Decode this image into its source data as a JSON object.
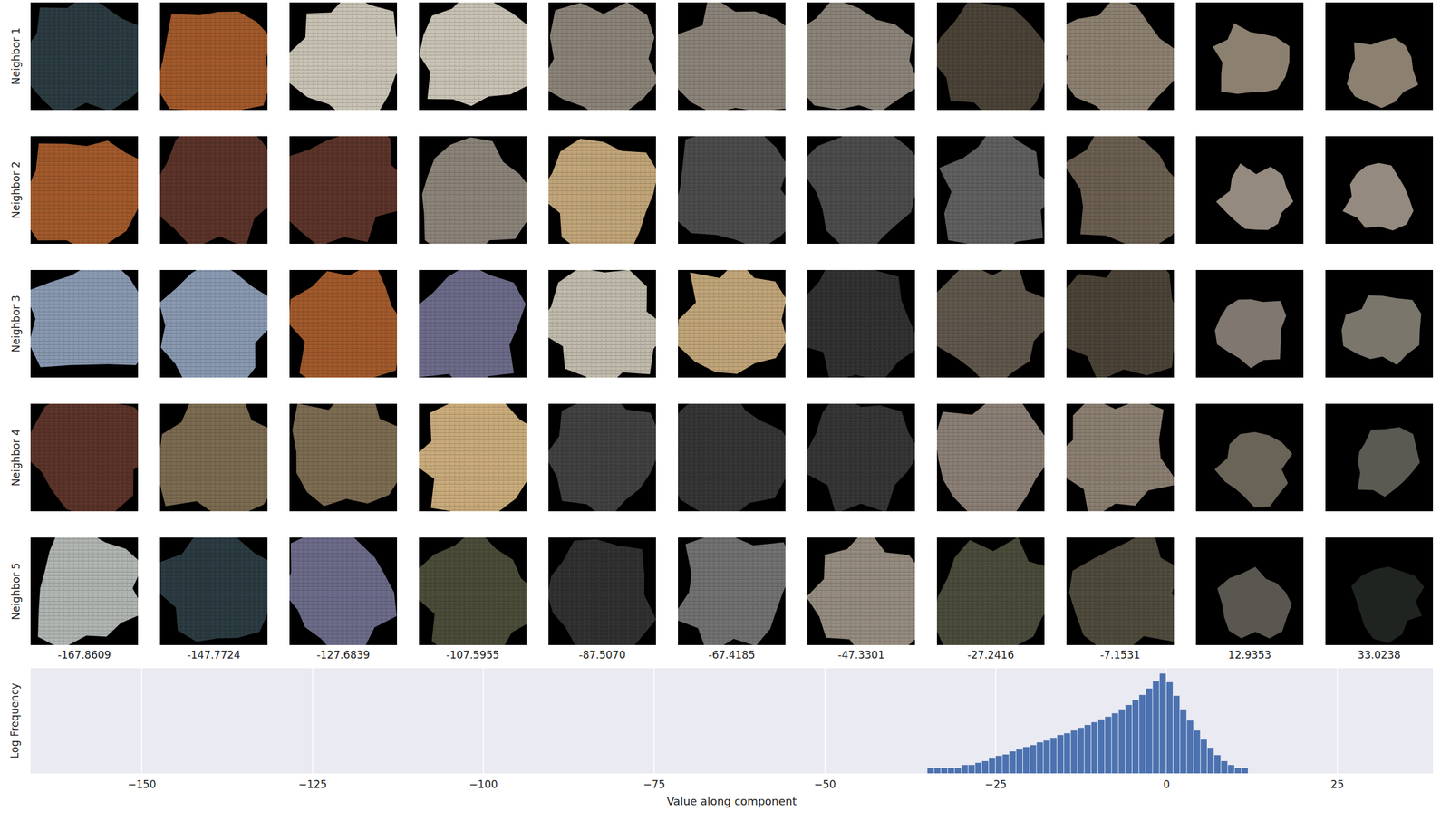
{
  "image_grid": {
    "row_labels": [
      "Neighbor 1",
      "Neighbor 2",
      "Neighbor 3",
      "Neighbor 4",
      "Neighbor 5"
    ],
    "column_labels": [
      "-167.8609",
      "-147.7724",
      "-127.6839",
      "-107.5955",
      "-87.5070",
      "-67.4185",
      "-47.3301",
      "-27.2416",
      "-7.1531",
      "12.9353",
      "33.0238"
    ],
    "patches": [
      [
        "#2a3a40",
        "#a0582a",
        "#c8c2b4",
        "#c8c2b4",
        "#8a8278",
        "#8a8278",
        "#8a8278",
        "#4a4236",
        "#8c8070",
        "#8c8070",
        "#8c8070"
      ],
      [
        "#a0582a",
        "#5a3228",
        "#5a3228",
        "#8a8278",
        "#c0a478",
        "#4a4a4a",
        "#4a4a4a",
        "#5e5e5e",
        "#6a5e50",
        "#948a80",
        "#948a80"
      ],
      [
        "#8898b0",
        "#8898b0",
        "#a0582a",
        "#6a6a88",
        "#c0baac",
        "#c0a478",
        "#303030",
        "#5e564a",
        "#4a4236",
        "#807870",
        "#7a766c"
      ],
      [
        "#5a3228",
        "#7a6a50",
        "#7a6a50",
        "#c8aa7a",
        "#404040",
        "#343434",
        "#343434",
        "#8a7e74",
        "#8a7e70",
        "#6a6458",
        "#5a5a52"
      ],
      [
        "#b0b4b0",
        "#2a3a40",
        "#6a6a88",
        "#4a4a38",
        "#303030",
        "#707070",
        "#948a7e",
        "#4a4a3a",
        "#4e4a3c",
        "#5a5650",
        "#202420"
      ]
    ]
  },
  "chart_data": {
    "type": "histogram",
    "x_label": "Value along component",
    "y_label": "Log Frequency",
    "bins": [
      -35,
      -34,
      -33,
      -32,
      -31,
      -30,
      -29,
      -28,
      -27,
      -26,
      -25,
      -24,
      -23,
      -22,
      -21,
      -20,
      -19,
      -18,
      -17,
      -16,
      -15,
      -14,
      -13,
      -12,
      -11,
      -10,
      -9,
      -8,
      -7,
      -6,
      -5,
      -4,
      -3,
      -2,
      -1,
      0,
      1,
      2,
      3,
      4,
      5,
      6,
      7,
      8,
      9,
      10,
      11,
      12
    ],
    "counts": [
      2,
      2,
      2,
      2,
      2,
      3,
      3,
      4,
      5,
      7,
      10,
      12,
      18,
      23,
      32,
      41,
      59,
      75,
      107,
      155,
      195,
      280,
      400,
      580,
      830,
      1200,
      1700,
      2700,
      4500,
      8000,
      15000,
      30000,
      70000,
      180000,
      500000,
      160000,
      27000,
      4500,
      1050,
      280,
      85,
      29,
      11,
      5,
      3,
      2,
      2
    ],
    "color": "#4c72b0",
    "xlim": [
      -166.3,
      39
    ],
    "xticks": [
      {
        "value": -150,
        "label": "−150"
      },
      {
        "value": -125,
        "label": "−125"
      },
      {
        "value": -100,
        "label": "−100"
      },
      {
        "value": -75,
        "label": "−75"
      },
      {
        "value": -50,
        "label": "−50"
      },
      {
        "value": -25,
        "label": "−25"
      },
      0,
      25
    ],
    "ylim": [
      1,
      1000000
    ],
    "log": "y",
    "grid": true,
    "tick_labels": "x"
  }
}
